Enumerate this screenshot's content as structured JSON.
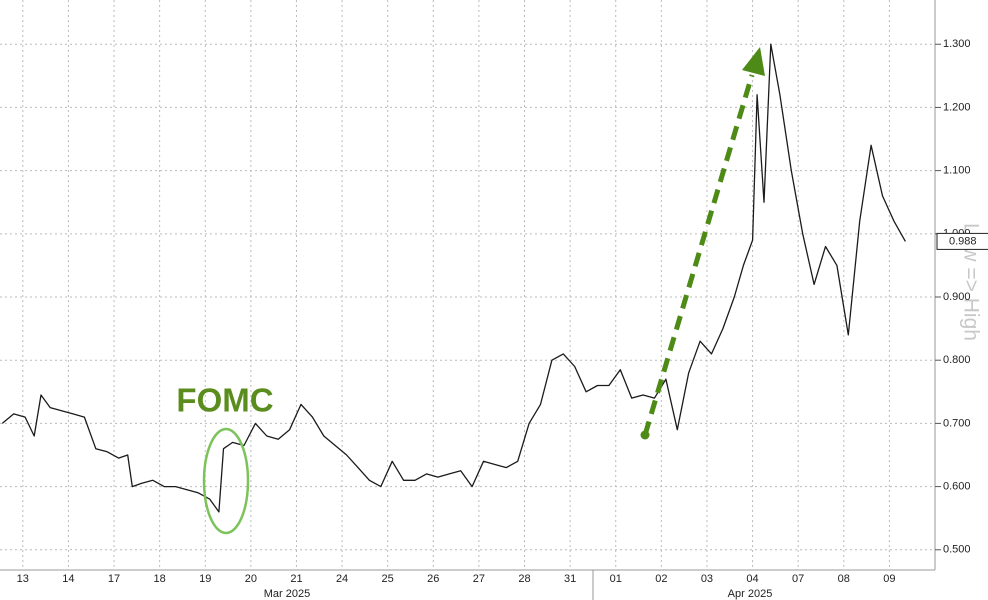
{
  "chart_data": {
    "type": "line",
    "annotations": [
      "FOMC",
      "Low => High"
    ],
    "x_group_labels": [
      "Mar 2025",
      "Apr 2025"
    ],
    "xlim": [
      0,
      20.5
    ],
    "xticks": [
      {
        "value": 0.5,
        "label": "13"
      },
      {
        "value": 1.5,
        "label": "14"
      },
      {
        "value": 2.5,
        "label": "17"
      },
      {
        "value": 3.5,
        "label": "18"
      },
      {
        "value": 4.5,
        "label": "19"
      },
      {
        "value": 5.5,
        "label": "20"
      },
      {
        "value": 6.5,
        "label": "21"
      },
      {
        "value": 7.5,
        "label": "24"
      },
      {
        "value": 8.5,
        "label": "25"
      },
      {
        "value": 9.5,
        "label": "26"
      },
      {
        "value": 10.5,
        "label": "27"
      },
      {
        "value": 11.5,
        "label": "28"
      },
      {
        "value": 12.5,
        "label": "31"
      },
      {
        "value": 13.5,
        "label": "01"
      },
      {
        "value": 14.5,
        "label": "02"
      },
      {
        "value": 15.5,
        "label": "03"
      },
      {
        "value": 16.5,
        "label": "04"
      },
      {
        "value": 17.5,
        "label": "07"
      },
      {
        "value": 18.5,
        "label": "08"
      },
      {
        "value": 19.5,
        "label": "09"
      }
    ],
    "ylim": [
      0.468,
      1.37
    ],
    "yticks": [
      {
        "value": 0.5,
        "label": "0.500"
      },
      {
        "value": 0.6,
        "label": "0.600"
      },
      {
        "value": 0.7,
        "label": "0.700"
      },
      {
        "value": 0.8,
        "label": "0.800"
      },
      {
        "value": 0.9,
        "label": "0.900"
      },
      {
        "value": 1.0,
        "label": "1.000"
      },
      {
        "value": 1.1,
        "label": "1.100"
      },
      {
        "value": 1.2,
        "label": "1.200"
      },
      {
        "value": 1.3,
        "label": "1.300"
      }
    ],
    "grid": true,
    "x": [
      0.05,
      0.3,
      0.55,
      0.75,
      0.9,
      1.1,
      1.35,
      1.6,
      1.85,
      2.1,
      2.35,
      2.6,
      2.8,
      2.9,
      3.1,
      3.35,
      3.6,
      3.85,
      4.1,
      4.35,
      4.6,
      4.8,
      4.9,
      5.1,
      5.35,
      5.6,
      5.85,
      6.1,
      6.35,
      6.6,
      6.85,
      7.1,
      7.35,
      7.6,
      7.85,
      8.1,
      8.35,
      8.6,
      8.85,
      9.1,
      9.35,
      9.6,
      9.85,
      10.1,
      10.35,
      10.6,
      10.85,
      11.1,
      11.35,
      11.6,
      11.85,
      12.1,
      12.35,
      12.6,
      12.85,
      13.1,
      13.35,
      13.6,
      13.85,
      14.1,
      14.35,
      14.6,
      14.85,
      15.1,
      15.35,
      15.6,
      15.85,
      16.1,
      16.3,
      16.5,
      16.6,
      16.75,
      16.9,
      17.1,
      17.35,
      17.6,
      17.85,
      18.1,
      18.35,
      18.6,
      18.85,
      19.1,
      19.35,
      19.6,
      19.85
    ],
    "series": [
      {
        "color": "#1b1b1b",
        "values": [
          0.7,
          0.715,
          0.71,
          0.68,
          0.745,
          0.725,
          0.72,
          0.715,
          0.71,
          0.66,
          0.655,
          0.645,
          0.65,
          0.6,
          0.605,
          0.61,
          0.6,
          0.6,
          0.595,
          0.59,
          0.58,
          0.56,
          0.66,
          0.67,
          0.665,
          0.7,
          0.68,
          0.675,
          0.69,
          0.73,
          0.71,
          0.68,
          0.665,
          0.65,
          0.63,
          0.61,
          0.6,
          0.64,
          0.61,
          0.61,
          0.62,
          0.615,
          0.62,
          0.625,
          0.6,
          0.64,
          0.635,
          0.63,
          0.64,
          0.7,
          0.73,
          0.8,
          0.81,
          0.79,
          0.75,
          0.76,
          0.76,
          0.785,
          0.74,
          0.745,
          0.74,
          0.77,
          0.69,
          0.78,
          0.83,
          0.81,
          0.85,
          0.9,
          0.95,
          0.99,
          1.22,
          1.05,
          1.3,
          1.22,
          1.1,
          1.0,
          0.92,
          0.98,
          0.95,
          0.84,
          1.02,
          1.14,
          1.06,
          1.02,
          0.988
        ]
      }
    ]
  }
}
